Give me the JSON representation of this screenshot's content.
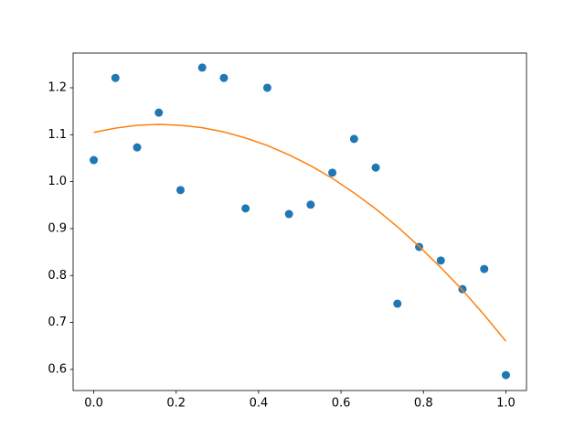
{
  "chart_data": {
    "type": "scatter",
    "xlim": [
      -0.05,
      1.05
    ],
    "ylim": [
      0.555,
      1.274
    ],
    "xticks": [
      {
        "value": 0,
        "label": "0.0"
      },
      0.2,
      0.4,
      0.6,
      0.8,
      {
        "value": 1,
        "label": "1.0"
      }
    ],
    "yticks": [
      0.6,
      0.7,
      0.8,
      0.9,
      {
        "value": 1,
        "label": "1.0"
      },
      1.1,
      1.2
    ],
    "series": [
      {
        "type": "scatter",
        "color": "#1f77b4",
        "x": [
          0,
          0.0526,
          0.1053,
          0.1579,
          0.2105,
          0.2632,
          0.3158,
          0.3684,
          0.4211,
          0.4737,
          0.5263,
          0.5789,
          0.6316,
          0.6842,
          0.7368,
          0.7895,
          0.8421,
          0.8947,
          0.9474,
          1
        ],
        "values": [
          1.046,
          1.221,
          1.073,
          1.147,
          0.982,
          1.243,
          1.221,
          0.943,
          1.2,
          0.931,
          0.951,
          1.019,
          1.091,
          1.03,
          0.74,
          0.861,
          0.832,
          0.771,
          0.814,
          0.588
        ]
      },
      {
        "type": "line",
        "color": "#ff7f0e",
        "x": [
          0,
          0.0526,
          0.1053,
          0.1579,
          0.2105,
          0.2632,
          0.3158,
          0.3684,
          0.4211,
          0.4737,
          0.5263,
          0.5789,
          0.6316,
          0.6842,
          0.7368,
          0.7895,
          0.8421,
          0.8947,
          0.9474,
          1
        ],
        "values": [
          1.105,
          1.114,
          1.12,
          1.122,
          1.12,
          1.115,
          1.106,
          1.093,
          1.077,
          1.057,
          1.034,
          1.007,
          0.976,
          0.942,
          0.904,
          0.862,
          0.817,
          0.769,
          0.716,
          0.66
        ]
      }
    ]
  }
}
